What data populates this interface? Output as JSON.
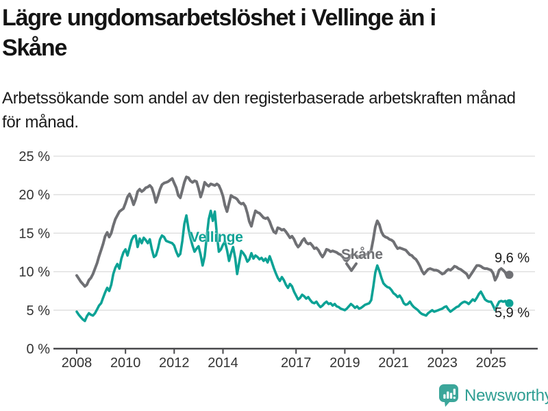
{
  "title": {
    "text": "Lägre ungdomsarbetslöshet i Vellinge än i Skåne",
    "lines": [
      "Lägre ungdomsarbetslöshet i Vellinge än i",
      "Skåne"
    ]
  },
  "subtitle": {
    "text": "Arbetssökande som andel av den registerbaserade arbetskraften månad för månad.",
    "lines": [
      "Arbetssökande som andel av den registerbaserade arbetskraften månad",
      "för månad."
    ]
  },
  "branding": {
    "logo_text": "Newsworthy",
    "logo_icon": "newsworthy-chart-bubble-icon"
  },
  "colors": {
    "vellinge": "#0ca295",
    "skane": "#6f7074",
    "axis": "#47474a",
    "gridline": "#dcdcdc",
    "tick_label": "#333333",
    "logo_teal": "#2f9e93",
    "logo_icon_fill": "#3ba69a",
    "end_label": "#1a1a1a"
  },
  "chart_data": {
    "type": "line",
    "title": "Lägre ungdomsarbetslöshet i Vellinge än i Skåne",
    "xlabel": "",
    "ylabel": "Arbetssökande som andel av den registerbaserade arbetskraften",
    "x_unit": "months since 2008-01",
    "x_start": "2008-01",
    "x_end": "2025-10",
    "ylim": [
      0,
      25
    ],
    "grid": "horizontal",
    "legend_position": "inline-annotations",
    "y_ticks": [
      {
        "value": 0,
        "label": "0 %"
      },
      {
        "value": 5,
        "label": "5 %"
      },
      {
        "value": 10,
        "label": "10 %"
      },
      {
        "value": 15,
        "label": "15 %"
      },
      {
        "value": 20,
        "label": "20 %"
      },
      {
        "value": 25,
        "label": "25 %"
      }
    ],
    "x_ticks": [
      {
        "year": 2008,
        "label": "2008"
      },
      {
        "year": 2010,
        "label": "2010"
      },
      {
        "year": 2012,
        "label": "2012"
      },
      {
        "year": 2014,
        "label": "2014"
      },
      {
        "year": 2017,
        "label": "2017"
      },
      {
        "year": 2019,
        "label": "2019"
      },
      {
        "year": 2021,
        "label": "2021"
      },
      {
        "year": 2023,
        "label": "2023"
      },
      {
        "year": 2025,
        "label": "2025"
      }
    ],
    "annotations": {
      "vellinge_label": "Vellinge",
      "skane_label": "Skåne",
      "skane_end_value_label": "9,6 %",
      "vellinge_end_value_label": "5,9 %"
    },
    "series": [
      {
        "id": "skane",
        "name": "Skåne",
        "color": "#6f7074",
        "end_value": 9.6,
        "values": [
          9.5,
          9.1,
          8.7,
          8.4,
          8.1,
          8.3,
          8.9,
          9.2,
          9.7,
          10.4,
          11.1,
          12.0,
          12.8,
          13.6,
          14.6,
          15.1,
          14.5,
          15.0,
          16.0,
          16.8,
          17.3,
          17.8,
          18.0,
          18.2,
          18.9,
          19.7,
          20.1,
          19.5,
          18.7,
          19.4,
          20.4,
          20.7,
          20.4,
          20.6,
          20.9,
          21.0,
          21.2,
          20.9,
          20.1,
          19.0,
          19.8,
          20.7,
          21.3,
          21.5,
          21.6,
          21.7,
          21.9,
          22.1,
          21.5,
          20.9,
          19.9,
          19.6,
          20.6,
          21.6,
          22.3,
          22.2,
          21.8,
          21.6,
          21.8,
          21.7,
          20.8,
          19.7,
          20.5,
          21.6,
          21.3,
          21.1,
          21.4,
          21.3,
          21.2,
          21.4,
          21.2,
          20.6,
          19.8,
          18.6,
          17.8,
          18.9,
          19.9,
          19.7,
          19.6,
          19.4,
          19.0,
          18.8,
          18.9,
          18.5,
          17.6,
          16.5,
          15.9,
          17.0,
          17.9,
          17.7,
          17.6,
          17.3,
          17.0,
          16.9,
          17.0,
          16.5,
          15.8,
          15.2,
          15.0,
          15.7,
          15.6,
          15.4,
          15.5,
          15.2,
          14.8,
          14.4,
          14.6,
          14.2,
          13.6,
          13.2,
          13.5,
          14.0,
          14.3,
          13.8,
          13.6,
          13.7,
          13.4,
          13.0,
          13.1,
          12.8,
          12.3,
          11.9,
          12.3,
          12.9,
          12.8,
          12.6,
          12.7,
          12.6,
          12.5,
          12.3,
          12.2,
          11.9,
          11.5,
          11.4,
          11.7,
          12.1,
          12.3,
          12.2,
          12.0,
          11.9,
          11.9,
          12.0,
          12.2,
          12.3,
          12.4,
          12.8,
          14.2,
          15.8,
          16.6,
          16.1,
          15.2,
          14.7,
          14.5,
          14.4,
          14.2,
          14.1,
          13.9,
          13.4,
          13.0,
          13.1,
          13.0,
          12.9,
          12.8,
          12.5,
          12.2,
          12.1,
          11.8,
          11.6,
          11.2,
          10.7,
          10.1,
          9.7,
          10.0,
          10.3,
          10.4,
          10.3,
          10.2,
          10.2,
          10.1,
          9.9,
          9.7,
          9.8,
          10.1,
          10.3,
          10.2,
          10.4,
          10.7,
          10.6,
          10.4,
          10.3,
          10.1,
          9.9,
          9.7,
          9.2,
          9.6,
          10.0,
          10.4,
          10.8,
          10.8,
          10.7,
          10.5,
          10.4,
          10.4,
          10.3,
          10.2,
          9.8,
          8.9,
          9.4,
          10.2,
          10.4,
          10.2,
          9.9,
          9.3,
          9.6
        ]
      },
      {
        "id": "vellinge",
        "name": "Vellinge",
        "color": "#0ca295",
        "end_value": 5.9,
        "values": [
          4.8,
          4.4,
          4.1,
          3.8,
          3.6,
          4.2,
          4.6,
          4.4,
          4.3,
          4.6,
          5.1,
          5.6,
          5.9,
          6.6,
          7.3,
          7.9,
          7.5,
          8.3,
          9.7,
          10.5,
          11.0,
          10.4,
          11.7,
          12.5,
          12.9,
          12.1,
          13.1,
          14.1,
          14.6,
          14.7,
          13.2,
          14.3,
          13.7,
          14.4,
          14.1,
          13.7,
          14.2,
          12.9,
          11.9,
          12.1,
          13.0,
          14.2,
          14.7,
          14.5,
          14.0,
          13.9,
          13.8,
          13.7,
          13.4,
          12.6,
          12.0,
          12.3,
          14.0,
          16.2,
          17.3,
          15.6,
          14.4,
          13.4,
          12.6,
          13.0,
          13.3,
          12.2,
          10.8,
          12.0,
          14.5,
          16.8,
          17.9,
          16.6,
          17.8,
          14.8,
          12.6,
          12.9,
          13.5,
          13.9,
          12.8,
          11.4,
          12.4,
          13.2,
          11.8,
          9.7,
          11.2,
          12.7,
          12.4,
          12.0,
          11.3,
          11.6,
          12.4,
          11.7,
          12.1,
          11.9,
          11.6,
          11.8,
          11.4,
          11.7,
          11.2,
          12.0,
          11.3,
          10.5,
          9.8,
          9.2,
          8.8,
          9.3,
          8.9,
          8.3,
          7.9,
          8.4,
          8.1,
          7.4,
          6.9,
          6.4,
          6.6,
          7.0,
          6.8,
          6.5,
          6.7,
          6.3,
          6.0,
          5.9,
          6.1,
          5.7,
          5.4,
          5.6,
          5.9,
          6.1,
          5.8,
          5.9,
          5.6,
          5.8,
          5.5,
          5.4,
          5.2,
          5.1,
          5.0,
          5.2,
          5.5,
          5.8,
          5.6,
          5.3,
          5.5,
          5.2,
          5.3,
          5.5,
          5.7,
          5.8,
          5.9,
          6.3,
          8.0,
          9.9,
          10.8,
          10.1,
          9.2,
          8.5,
          8.2,
          8.0,
          7.9,
          7.6,
          7.2,
          7.0,
          6.7,
          6.9,
          6.5,
          5.9,
          5.7,
          5.8,
          6.1,
          5.7,
          5.4,
          5.2,
          5.0,
          4.7,
          4.5,
          4.4,
          4.3,
          4.6,
          4.8,
          5.0,
          4.8,
          4.9,
          5.0,
          5.1,
          5.2,
          5.4,
          5.5,
          5.1,
          4.8,
          5.0,
          5.2,
          5.4,
          5.5,
          5.8,
          6.0,
          6.1,
          6.0,
          5.8,
          6.1,
          6.4,
          6.2,
          6.6,
          7.1,
          7.4,
          6.9,
          6.4,
          6.2,
          6.1,
          6.1,
          5.6,
          5.0,
          5.6,
          6.1,
          6.2,
          6.1,
          6.2,
          5.7,
          5.9
        ]
      }
    ]
  }
}
